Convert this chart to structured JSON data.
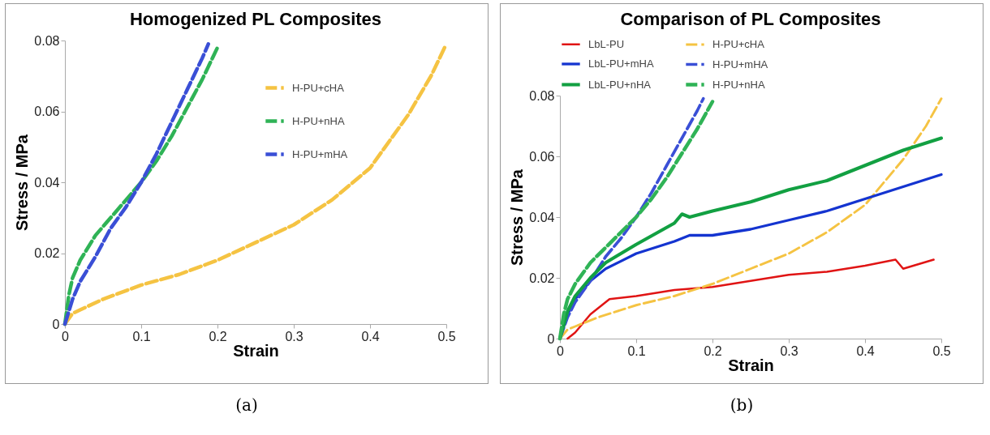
{
  "chart_data": [
    {
      "type": "line",
      "title": "Homogenized PL Composites",
      "xlabel": "Strain",
      "ylabel": "Stress / MPa",
      "xlim": [
        0,
        0.5
      ],
      "ylim": [
        0,
        0.08
      ],
      "xticks": [
        0,
        0.1,
        0.2,
        0.3,
        0.4,
        0.5
      ],
      "yticks": [
        0,
        0.02,
        0.04,
        0.06,
        0.08
      ],
      "grid": false,
      "legend": "top right",
      "marker": "none",
      "annotations": [
        "(a)"
      ],
      "series": [
        {
          "name": "H-PU+cHA",
          "color": "#f5c342",
          "line_style": "dashed",
          "x": [
            0,
            0.01,
            0.02,
            0.05,
            0.1,
            0.15,
            0.2,
            0.25,
            0.3,
            0.35,
            0.4,
            0.45,
            0.48,
            0.5
          ],
          "values": [
            0,
            0.003,
            0.004,
            0.007,
            0.011,
            0.014,
            0.018,
            0.023,
            0.028,
            0.035,
            0.044,
            0.059,
            0.07,
            0.079
          ]
        },
        {
          "name": "H-PU+nHA",
          "color": "#2fb356",
          "line_style": "dashed",
          "x": [
            0,
            0.005,
            0.01,
            0.02,
            0.04,
            0.06,
            0.08,
            0.1,
            0.12,
            0.14,
            0.16,
            0.18,
            0.2
          ],
          "values": [
            0,
            0.008,
            0.013,
            0.018,
            0.025,
            0.03,
            0.035,
            0.04,
            0.046,
            0.053,
            0.061,
            0.069,
            0.078
          ]
        },
        {
          "name": "H-PU+mHA",
          "color": "#3a4fd6",
          "line_style": "dashed",
          "x": [
            0,
            0.01,
            0.02,
            0.04,
            0.06,
            0.08,
            0.1,
            0.12,
            0.14,
            0.16,
            0.18,
            0.188
          ],
          "values": [
            0,
            0.007,
            0.012,
            0.019,
            0.027,
            0.033,
            0.04,
            0.048,
            0.057,
            0.066,
            0.075,
            0.079
          ]
        }
      ]
    },
    {
      "type": "line",
      "title": "Comparison of PL Composites",
      "xlabel": "Strain",
      "ylabel": "Stress / MPa",
      "xlim": [
        0,
        0.5
      ],
      "ylim": [
        0,
        0.08
      ],
      "xticks": [
        0,
        0.1,
        0.2,
        0.3,
        0.4,
        0.5
      ],
      "yticks": [
        0,
        0.02,
        0.04,
        0.06,
        0.08
      ],
      "grid": false,
      "legend": "top",
      "marker": "none",
      "annotations": [
        "(b)"
      ],
      "series": [
        {
          "name": "LbL-PU",
          "color": "#e01414",
          "line_style": "solid",
          "x": [
            0.01,
            0.02,
            0.04,
            0.06,
            0.065,
            0.1,
            0.15,
            0.2,
            0.25,
            0.3,
            0.35,
            0.4,
            0.44,
            0.45,
            0.49
          ],
          "values": [
            0,
            0.002,
            0.008,
            0.012,
            0.013,
            0.014,
            0.016,
            0.017,
            0.019,
            0.021,
            0.022,
            0.024,
            0.026,
            0.023,
            0.026
          ]
        },
        {
          "name": "H-PU+cHA",
          "color": "#f5c342",
          "line_style": "dashed",
          "x": [
            0,
            0.01,
            0.02,
            0.05,
            0.1,
            0.15,
            0.2,
            0.25,
            0.3,
            0.35,
            0.4,
            0.45,
            0.48,
            0.5
          ],
          "values": [
            0,
            0.003,
            0.004,
            0.007,
            0.011,
            0.014,
            0.018,
            0.023,
            0.028,
            0.035,
            0.044,
            0.059,
            0.07,
            0.079
          ]
        },
        {
          "name": "LbL-PU+mHA",
          "color": "#1434d0",
          "line_style": "solid",
          "x": [
            0,
            0.01,
            0.02,
            0.04,
            0.06,
            0.1,
            0.15,
            0.17,
            0.2,
            0.25,
            0.3,
            0.35,
            0.4,
            0.45,
            0.5
          ],
          "values": [
            0,
            0.008,
            0.013,
            0.019,
            0.023,
            0.028,
            0.032,
            0.034,
            0.034,
            0.036,
            0.039,
            0.042,
            0.046,
            0.05,
            0.054
          ]
        },
        {
          "name": "H-PU+mHA",
          "color": "#3a4fd6",
          "line_style": "dashed",
          "x": [
            0,
            0.01,
            0.02,
            0.04,
            0.06,
            0.08,
            0.1,
            0.12,
            0.14,
            0.16,
            0.18,
            0.188
          ],
          "values": [
            0,
            0.007,
            0.012,
            0.019,
            0.027,
            0.033,
            0.04,
            0.048,
            0.057,
            0.066,
            0.075,
            0.079
          ]
        },
        {
          "name": "LbL-PU+nHA",
          "color": "#12a042",
          "line_style": "solid",
          "x": [
            0,
            0.01,
            0.02,
            0.04,
            0.06,
            0.1,
            0.15,
            0.16,
            0.17,
            0.2,
            0.25,
            0.3,
            0.35,
            0.4,
            0.45,
            0.5
          ],
          "values": [
            0,
            0.009,
            0.014,
            0.02,
            0.025,
            0.031,
            0.038,
            0.041,
            0.04,
            0.042,
            0.045,
            0.049,
            0.052,
            0.057,
            0.062,
            0.066
          ]
        },
        {
          "name": "H-PU+nHA",
          "color": "#2fb356",
          "line_style": "dashed",
          "x": [
            0,
            0.005,
            0.01,
            0.02,
            0.04,
            0.06,
            0.08,
            0.1,
            0.12,
            0.14,
            0.16,
            0.18,
            0.2
          ],
          "values": [
            0,
            0.008,
            0.013,
            0.018,
            0.025,
            0.03,
            0.035,
            0.04,
            0.046,
            0.053,
            0.061,
            0.069,
            0.078
          ]
        }
      ]
    }
  ]
}
